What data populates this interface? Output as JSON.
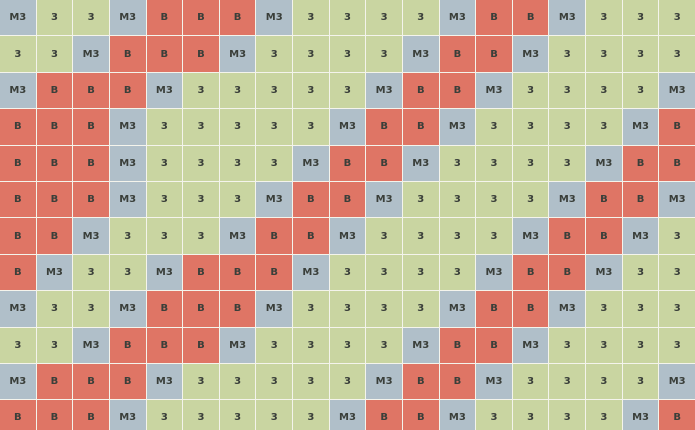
{
  "grid": {
    "rows": [
      [
        "M3",
        "3",
        "3",
        "M3",
        "B",
        "B",
        "B",
        "M3",
        "3",
        "3",
        "3",
        "3",
        "M3",
        "B",
        "B",
        "M3",
        "3",
        "3",
        "3"
      ],
      [
        "3",
        "3",
        "M3",
        "B",
        "B",
        "B",
        "M3",
        "3",
        "3",
        "3",
        "3",
        "M3",
        "B",
        "B",
        "M3",
        "3",
        "3",
        "3",
        "3"
      ],
      [
        "M3",
        "B",
        "B",
        "B",
        "M3",
        "3",
        "3",
        "3",
        "3",
        "3",
        "M3",
        "B",
        "B",
        "M3",
        "3",
        "3",
        "3",
        "3",
        "M3"
      ],
      [
        "B",
        "B",
        "B",
        "M3",
        "3",
        "3",
        "3",
        "3",
        "3",
        "M3",
        "B",
        "B",
        "M3",
        "3",
        "3",
        "3",
        "3",
        "M3",
        "B"
      ],
      [
        "B",
        "B",
        "B",
        "M3",
        "3",
        "3",
        "3",
        "3",
        "M3",
        "B",
        "B",
        "M3",
        "3",
        "3",
        "3",
        "3",
        "M3",
        "B",
        "B"
      ],
      [
        "B",
        "B",
        "B",
        "M3",
        "3",
        "3",
        "3",
        "M3",
        "B",
        "B",
        "M3",
        "3",
        "3",
        "3",
        "3",
        "M3",
        "B",
        "B",
        "M3"
      ],
      [
        "B",
        "B",
        "M3",
        "3",
        "3",
        "3",
        "M3",
        "B",
        "B",
        "M3",
        "3",
        "3",
        "3",
        "3",
        "M3",
        "B",
        "B",
        "M3",
        "3"
      ],
      [
        "B",
        "M3",
        "3",
        "3",
        "M3",
        "B",
        "B",
        "B",
        "M3",
        "3",
        "3",
        "3",
        "3",
        "M3",
        "B",
        "B",
        "M3",
        "3",
        "3"
      ],
      [
        "M3",
        "3",
        "3",
        "M3",
        "B",
        "B",
        "B",
        "M3",
        "3",
        "3",
        "3",
        "3",
        "M3",
        "B",
        "B",
        "M3",
        "3",
        "3",
        "3"
      ],
      [
        "3",
        "3",
        "M3",
        "B",
        "B",
        "B",
        "M3",
        "3",
        "3",
        "3",
        "3",
        "M3",
        "B",
        "B",
        "M3",
        "3",
        "3",
        "3",
        "3"
      ],
      [
        "M3",
        "B",
        "B",
        "B",
        "M3",
        "3",
        "3",
        "3",
        "3",
        "3",
        "M3",
        "B",
        "B",
        "M3",
        "3",
        "3",
        "3",
        "3",
        "M3"
      ],
      [
        "B",
        "B",
        "B",
        "M3",
        "3",
        "3",
        "3",
        "3",
        "3",
        "M3",
        "B",
        "B",
        "M3",
        "3",
        "3",
        "3",
        "3",
        "M3",
        "B"
      ]
    ],
    "cell_colors": {
      "B": "#df7565",
      "M3": "#b0bfc9",
      "3": "#c9d5a1"
    }
  }
}
